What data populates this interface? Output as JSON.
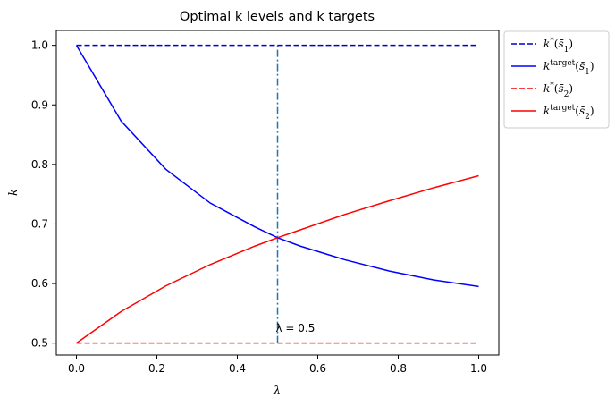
{
  "chart_data": {
    "type": "line",
    "title": "Optimal k levels and k targets",
    "xlabel": "λ",
    "ylabel": "k",
    "xlim": [
      -0.05,
      1.05
    ],
    "ylim": [
      0.48,
      1.025
    ],
    "xticks": [
      0.0,
      0.2,
      0.4,
      0.6,
      0.8,
      1.0
    ],
    "xtick_labels": [
      "0.0",
      "0.2",
      "0.4",
      "0.6",
      "0.8",
      "1.0"
    ],
    "yticks": [
      0.5,
      0.6,
      0.7,
      0.8,
      0.9,
      1.0
    ],
    "ytick_labels": [
      "0.5",
      "0.6",
      "0.7",
      "0.8",
      "0.9",
      "1.0"
    ],
    "grid": false,
    "legend_position": "outside-top-right",
    "series": [
      {
        "legend": "k*(s̄1)",
        "color": "#0000cc",
        "style": "dashed",
        "x": [
          0.0,
          1.0
        ],
        "y": [
          1.0,
          1.0
        ]
      },
      {
        "legend": "k^target(s̄1)",
        "color": "#0000ff",
        "style": "solid",
        "x": [
          0.0,
          0.111,
          0.222,
          0.333,
          0.444,
          0.5,
          0.556,
          0.667,
          0.778,
          0.889,
          1.0
        ],
        "y": [
          1.0,
          0.873,
          0.792,
          0.735,
          0.695,
          0.677,
          0.663,
          0.64,
          0.621,
          0.606,
          0.595
        ]
      },
      {
        "legend": "k*(s̄2)",
        "color": "#ee0000",
        "style": "dashed",
        "x": [
          0.0,
          1.0
        ],
        "y": [
          0.5,
          0.5
        ]
      },
      {
        "legend": "k^target(s̄2)",
        "color": "#ff0000",
        "style": "solid",
        "x": [
          0.0,
          0.111,
          0.222,
          0.333,
          0.444,
          0.5,
          0.556,
          0.667,
          0.778,
          0.889,
          1.0
        ],
        "y": [
          0.5,
          0.553,
          0.596,
          0.632,
          0.663,
          0.677,
          0.69,
          0.716,
          0.739,
          0.761,
          0.781
        ]
      }
    ],
    "vline": {
      "x": 0.5,
      "y_from": 0.5,
      "y_to": 1.0,
      "color": "#1f77b4",
      "style": "dashdot"
    },
    "annotations": [
      {
        "text": "λ = 0.5",
        "x": 0.5,
        "y": 0.525
      }
    ]
  }
}
